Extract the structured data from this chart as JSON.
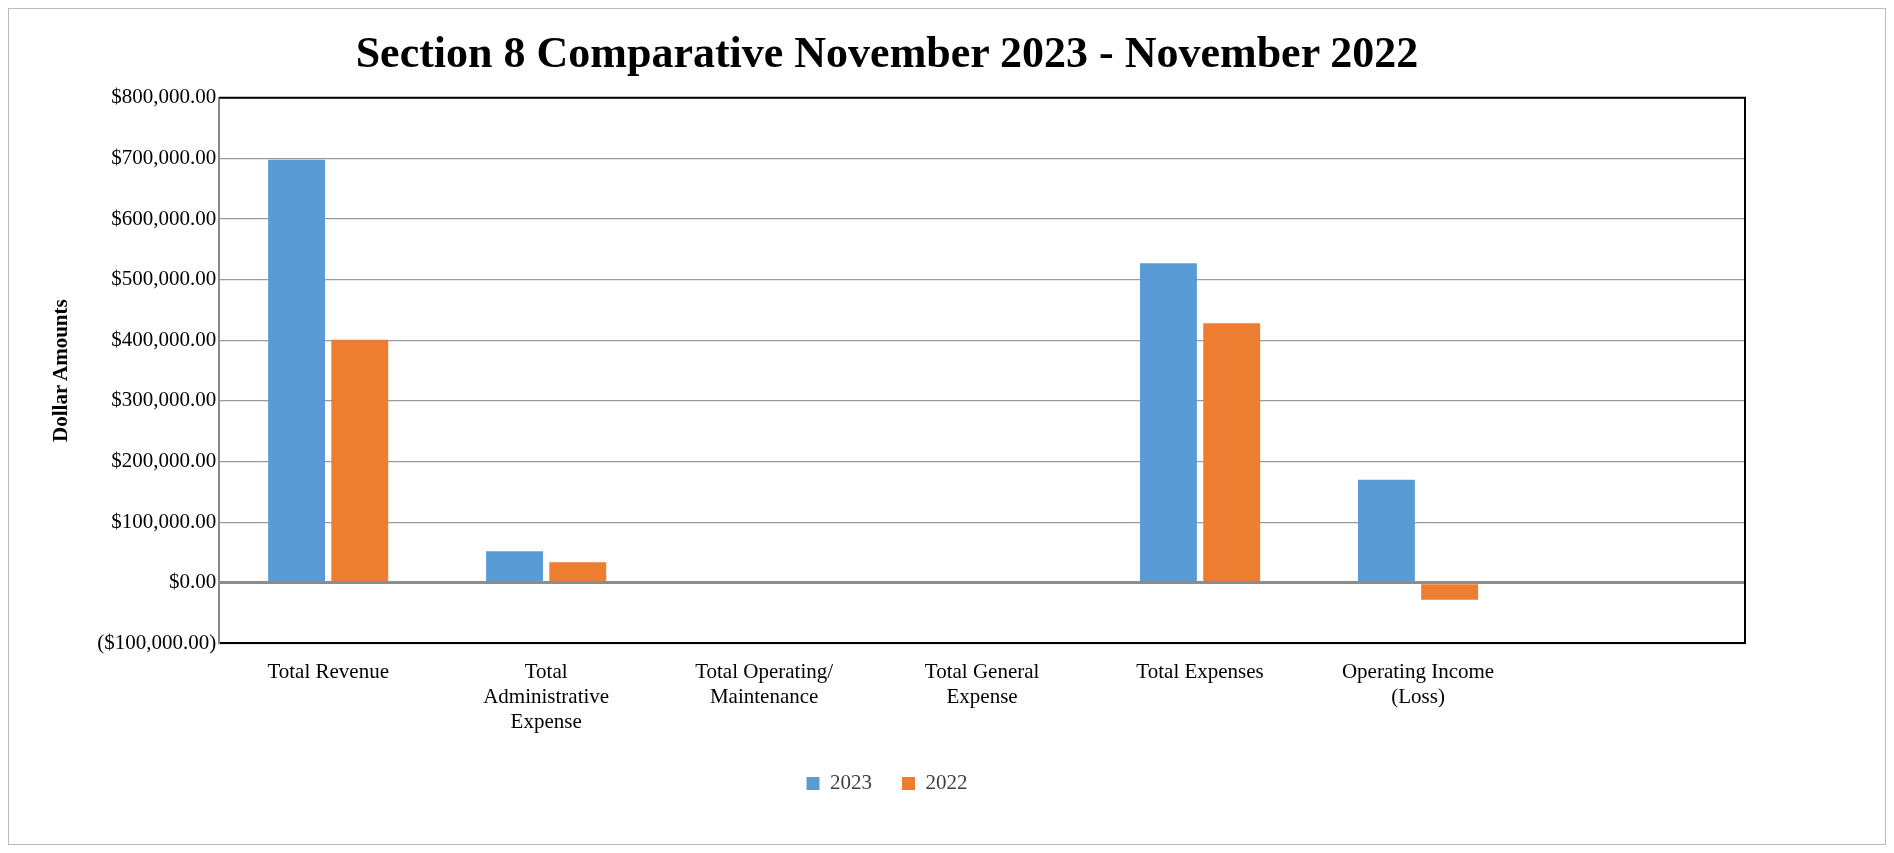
{
  "chart_data": {
    "type": "bar",
    "title": "Section 8 Comparative November 2023 - November 2022",
    "ylabel": "Dollar Amounts",
    "categories": [
      "Total Revenue",
      "Total Administrative Expense",
      "Total Operating/ Maintenance",
      "Total General Expense",
      "Total Expenses",
      "Operating Income (Loss)",
      null
    ],
    "series": [
      {
        "name": "2023",
        "color": "#5b9bd5",
        "values": [
          698000,
          52000,
          0,
          0,
          527000,
          170000,
          null
        ]
      },
      {
        "name": "2022",
        "color": "#ed7d31",
        "values": [
          401000,
          34000,
          0,
          0,
          428000,
          -28000,
          null
        ]
      }
    ],
    "ylim": [
      -100000,
      800000
    ],
    "yticks": [
      {
        "value": -100000,
        "label": "($100,000.00)"
      },
      {
        "value": 0,
        "label": "$0.00"
      },
      {
        "value": 100000,
        "label": "$100,000.00"
      },
      {
        "value": 200000,
        "label": "$200,000.00"
      },
      {
        "value": 300000,
        "label": "$300,000.00"
      },
      {
        "value": 400000,
        "label": "$400,000.00"
      },
      {
        "value": 500000,
        "label": "$500,000.00"
      },
      {
        "value": 600000,
        "label": "$600,000.00"
      },
      {
        "value": 700000,
        "label": "$700,000.00"
      },
      {
        "value": 800000,
        "label": "$800,000.00"
      }
    ],
    "grid": "y",
    "legend": "bottom"
  }
}
